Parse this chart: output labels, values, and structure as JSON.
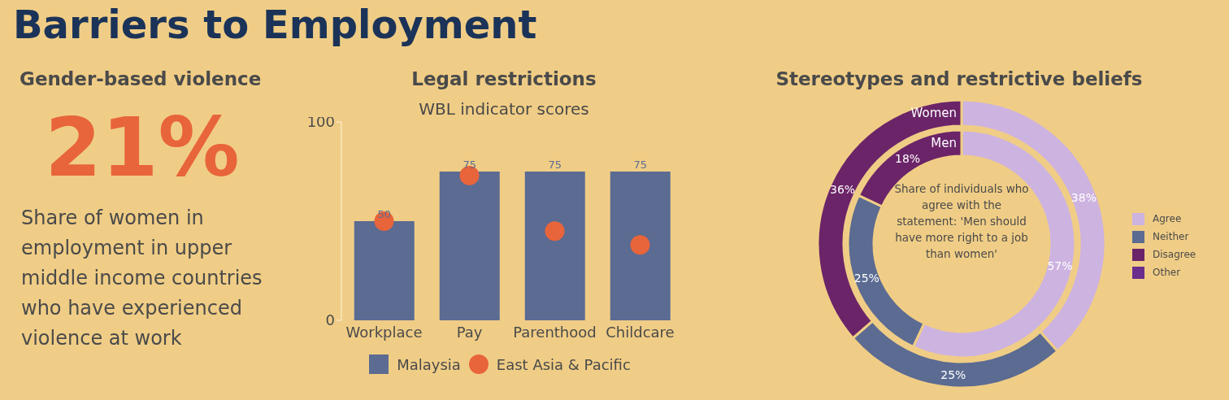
{
  "chart_data": [
    {
      "type": "other",
      "title": "Barriers to Employment",
      "subtitle": "Gender-based violence",
      "annotations": [
        "21%",
        "Share of women in employment in upper middle income countries who have experienced violence at work"
      ]
    },
    {
      "type": "bar",
      "title": "Legal restrictions",
      "subtitle": "WBL indicator scores",
      "categories": [
        "Workplace",
        "Pay",
        "Parenthood",
        "Childcare"
      ],
      "series": [
        {
          "name": "Malaysia",
          "type": "bar",
          "color": "#5b6b92",
          "values": [
            50,
            75,
            75,
            75
          ],
          "value_labels": [
            "50",
            "75",
            "75",
            "75"
          ]
        },
        {
          "name": "East Asia & Pacific",
          "type": "scatter",
          "color": "#e8643a",
          "values": [
            50,
            73,
            45,
            38
          ]
        }
      ],
      "ylim": [
        0,
        100
      ],
      "yticks": [
        0,
        100
      ],
      "legend": "bottom"
    },
    {
      "type": "donut",
      "title": "Stereotypes and restrictive beliefs",
      "categories": [
        "Agree",
        "Neither",
        "Disagree",
        "Other"
      ],
      "colors": [
        "#cdb3e0",
        "#5b6b92",
        "#6b2468",
        "#6a2e8c"
      ],
      "series": [
        {
          "name": "Women",
          "values": [
            38,
            25,
            36,
            0
          ],
          "value_labels": [
            "38%",
            "25%",
            "36%",
            null
          ]
        },
        {
          "name": "Men",
          "values": [
            57,
            25,
            18,
            0
          ],
          "value_labels": [
            "57%",
            "25%",
            "18%",
            null
          ]
        }
      ],
      "legend": "right",
      "annotations": [
        "Share of individuals who agree with the statement: 'Men should have more right to a job than women'"
      ]
    }
  ]
}
